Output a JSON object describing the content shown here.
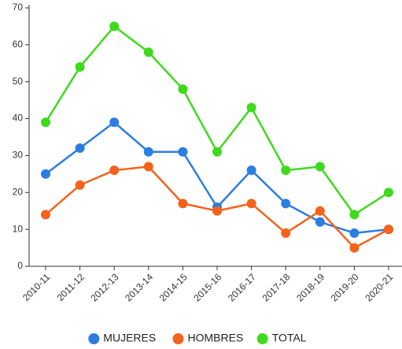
{
  "chart_data": {
    "type": "line",
    "categories": [
      "2010-11",
      "2011-12",
      "2012-13",
      "2013-14",
      "2014-15",
      "2015-16",
      "2016-17",
      "2017-18",
      "2018-19",
      "2019-20",
      "2020-21"
    ],
    "series": [
      {
        "name": "MUJERES",
        "color": "#2b7de0",
        "values": [
          25,
          32,
          39,
          31,
          31,
          16,
          26,
          17,
          12,
          9,
          10
        ]
      },
      {
        "name": "HOMBRES",
        "color": "#f5621b",
        "values": [
          14,
          22,
          26,
          27,
          17,
          15,
          17,
          9,
          15,
          5,
          10
        ]
      },
      {
        "name": "TOTAL",
        "color": "#3fd91d",
        "values": [
          39,
          54,
          65,
          58,
          48,
          31,
          43,
          26,
          27,
          14,
          20
        ]
      }
    ],
    "ylim": [
      0,
      70
    ],
    "yticks": [
      0,
      10,
      20,
      30,
      40,
      50,
      60,
      70
    ],
    "grid": false,
    "legend": "bottom"
  }
}
